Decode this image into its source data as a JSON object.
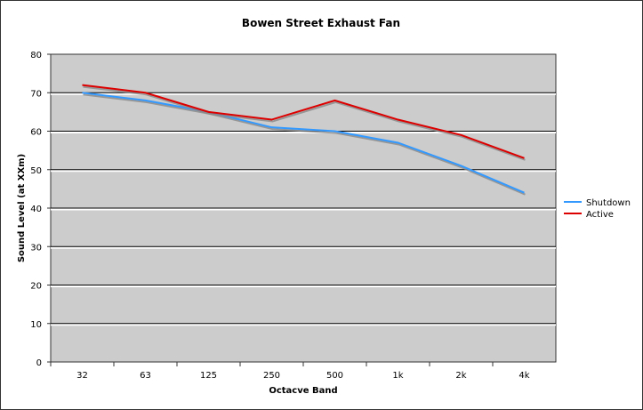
{
  "chart_data": {
    "type": "line",
    "title": "Bowen Street Exhaust Fan",
    "xlabel": "Octacve Band",
    "ylabel": "Sound Level (at XXm)",
    "categories": [
      "32",
      "63",
      "125",
      "250",
      "500",
      "1k",
      "2k",
      "4k"
    ],
    "ylim": [
      0,
      80
    ],
    "yticks": [
      0,
      10,
      20,
      30,
      40,
      50,
      60,
      70,
      80
    ],
    "grid": true,
    "legend_position": "right",
    "plot_background": "#cccccc",
    "series": [
      {
        "name": "Shutdown",
        "color": "#3399ff",
        "values": [
          70,
          68,
          65,
          61,
          60,
          57,
          51,
          44
        ]
      },
      {
        "name": "Active",
        "color": "#dd0000",
        "values": [
          72,
          70,
          65,
          63,
          68,
          63,
          59,
          53
        ]
      }
    ]
  }
}
